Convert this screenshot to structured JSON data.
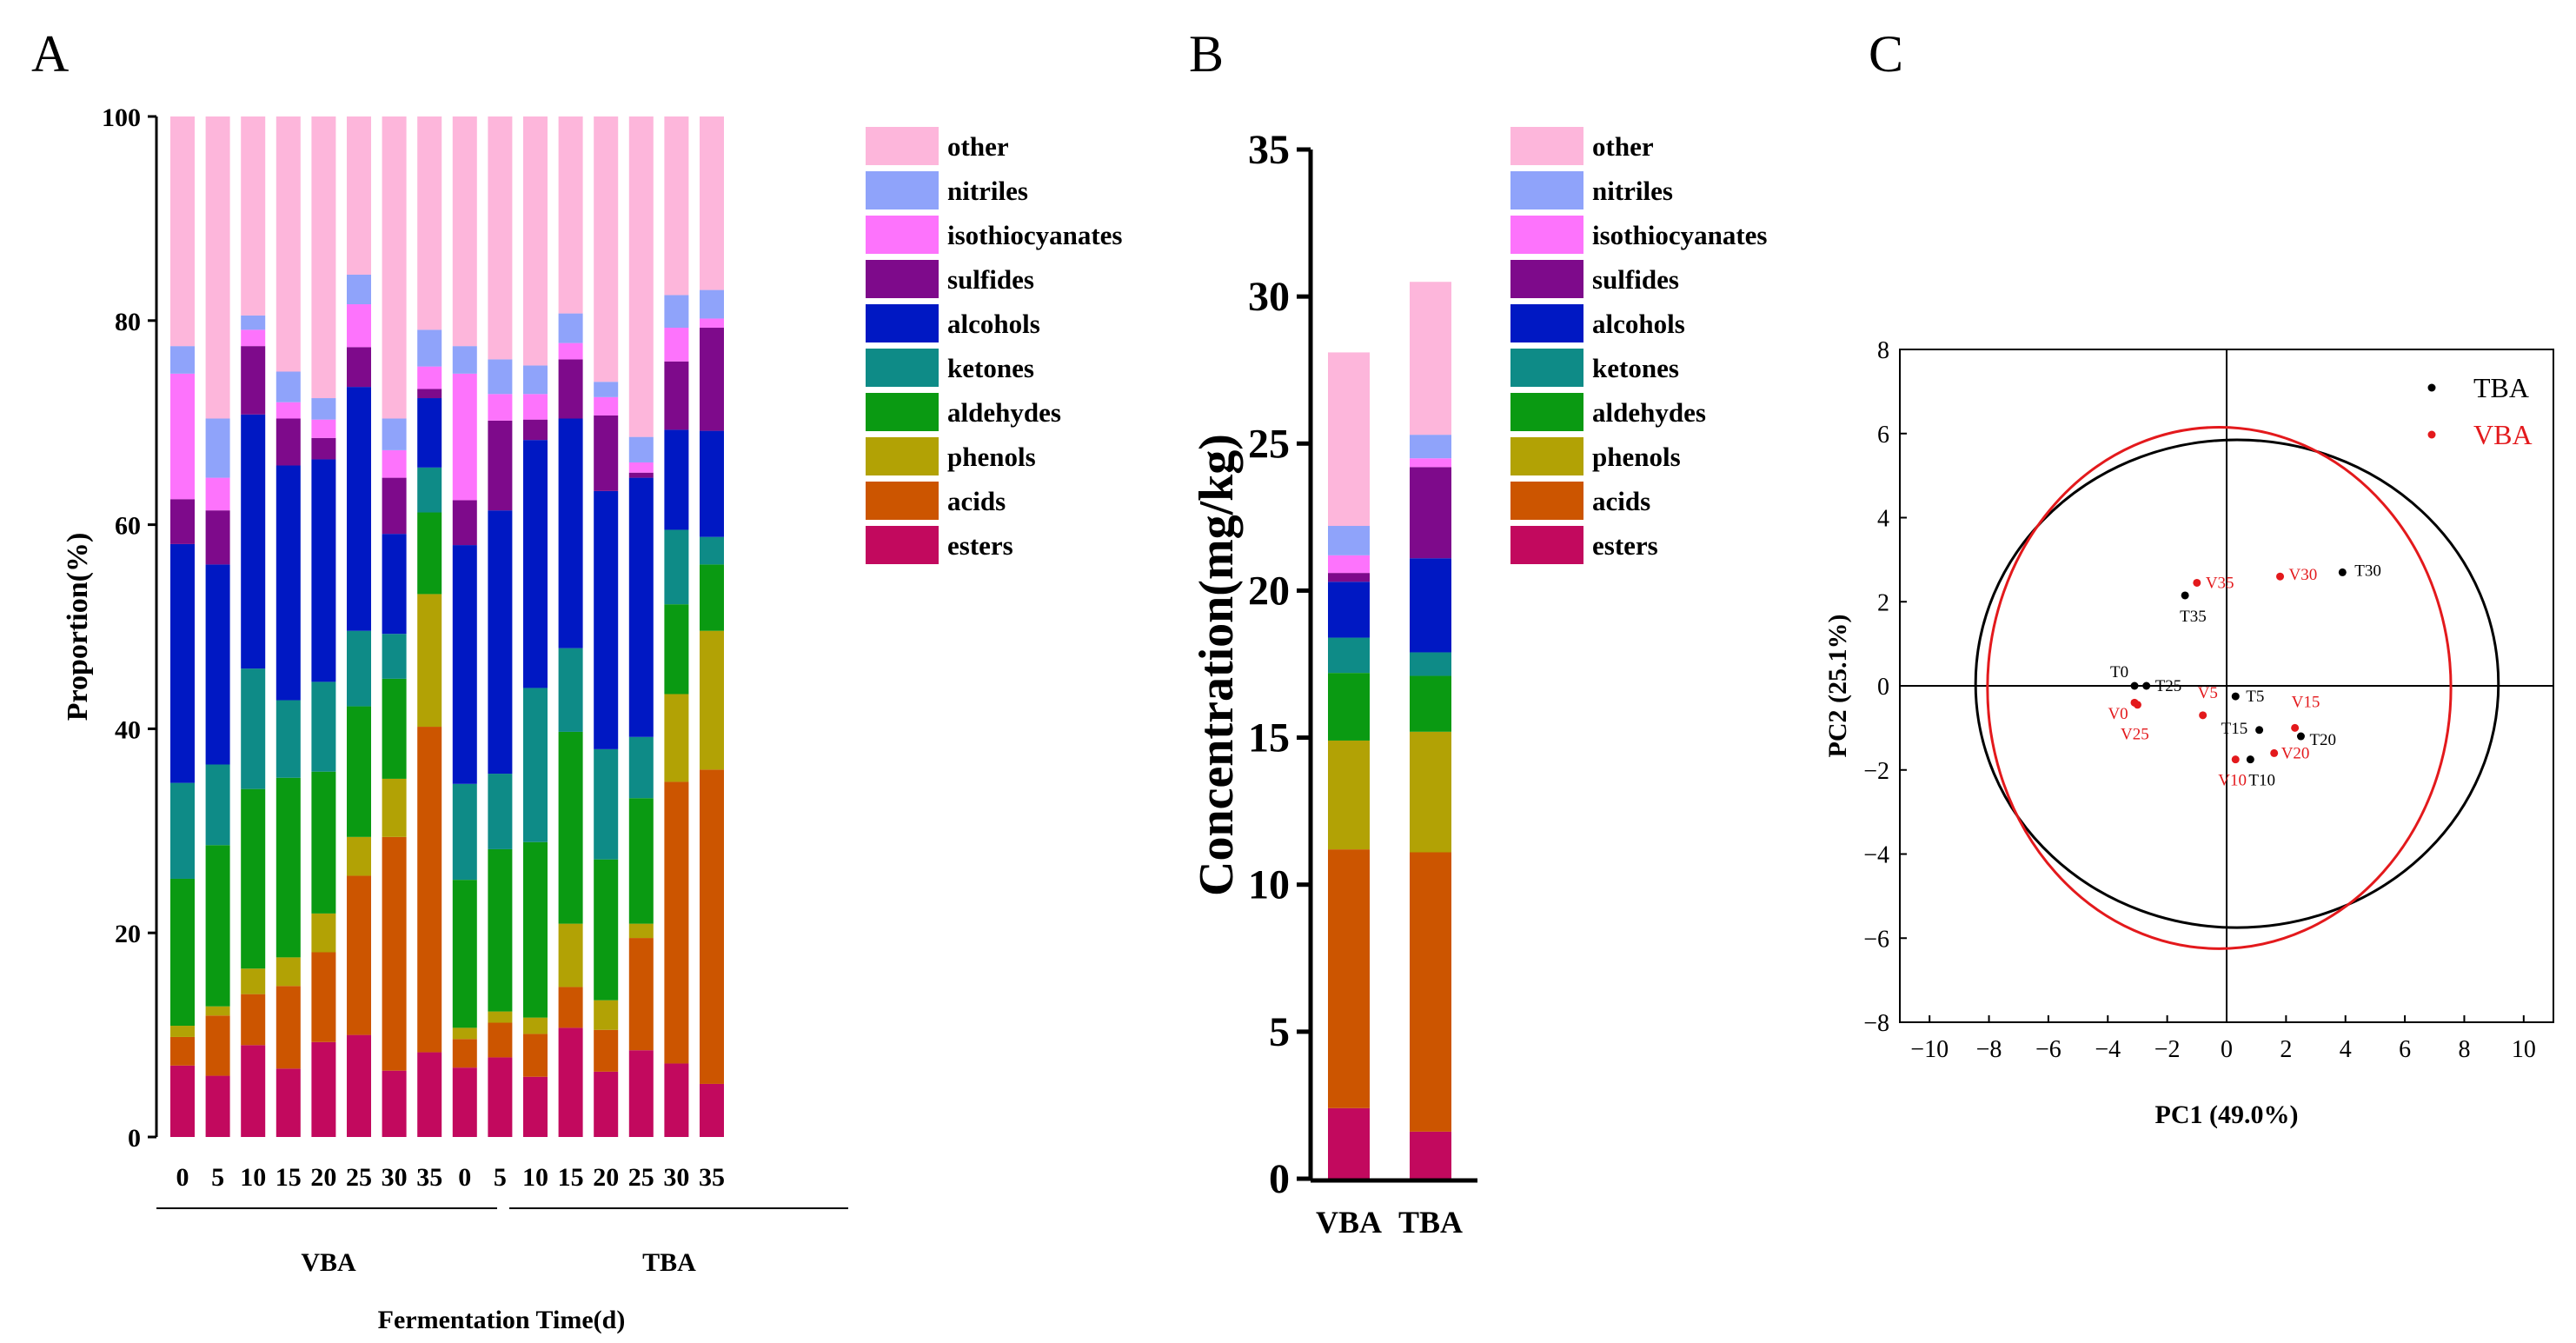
{
  "panels": {
    "a": "A",
    "b": "B",
    "c": "C"
  },
  "colors": {
    "other": "#FDB6DB",
    "nitriles": "#8FA3FA",
    "isothiocyanates": "#FD73FC",
    "sulfides": "#7E0A8B",
    "alcohols": "#0018C3",
    "ketones": "#0E8B87",
    "aldehydes": "#0A9A12",
    "phenols": "#B2A205",
    "acids": "#CC5500",
    "esters": "#C2095E"
  },
  "chart_data": [
    {
      "type": "bar",
      "stacked": true,
      "panel": "A",
      "ylabel": "Proportion(%)",
      "xlabel": "Fermentation Time(d)",
      "ylim": [
        0,
        100
      ],
      "yticks": [
        "0",
        "20",
        "40",
        "60",
        "80",
        "100"
      ],
      "groups": [
        {
          "label": "VBA"
        },
        {
          "label": "TBA"
        }
      ],
      "categories": [
        "0",
        "5",
        "10",
        "15",
        "20",
        "25",
        "30",
        "35",
        "0",
        "5",
        "10",
        "15",
        "20",
        "25",
        "30",
        "35"
      ],
      "legend": [
        "other",
        "nitriles",
        "isothiocyanates",
        "sulfides",
        "alcohols",
        "ketones",
        "aldehydes",
        "phenols",
        "acids",
        "esters"
      ],
      "series": [
        {
          "name": "esters",
          "values": [
            7,
            6,
            9,
            6.7,
            9.3,
            10,
            6.5,
            8.3,
            6.8,
            7.8,
            5.9,
            10.7,
            6.4,
            8.5,
            7.2,
            5.2
          ]
        },
        {
          "name": "acids",
          "values": [
            2.8,
            5.9,
            5,
            8.1,
            8.8,
            15.6,
            22.9,
            31.9,
            2.8,
            3.4,
            4.2,
            4,
            4.1,
            11,
            27.6,
            30.8
          ]
        },
        {
          "name": "phenols",
          "values": [
            1.1,
            0.9,
            2.5,
            2.8,
            3.8,
            3.8,
            5.7,
            13,
            1.1,
            1.1,
            1.6,
            6.2,
            2.9,
            1.4,
            8.6,
            13.6
          ]
        },
        {
          "name": "aldehydes",
          "values": [
            14.4,
            15.8,
            17.6,
            17.6,
            13.9,
            12.8,
            9.8,
            8,
            14.5,
            15.9,
            17.2,
            18.8,
            13.8,
            12.3,
            8.8,
            6.5
          ]
        },
        {
          "name": "ketones",
          "values": [
            9.4,
            7.9,
            11.8,
            7.6,
            8.8,
            7.4,
            4.4,
            4.4,
            9.4,
            7.4,
            15.1,
            8.2,
            10.8,
            6,
            7.3,
            2.7
          ]
        },
        {
          "name": "alcohols",
          "values": [
            23.4,
            19.6,
            24.9,
            23,
            21.8,
            23.9,
            9.8,
            6.8,
            23.4,
            25.8,
            24.3,
            22.5,
            25.3,
            25.4,
            9.8,
            10.4
          ]
        },
        {
          "name": "sulfides",
          "values": [
            4.4,
            5.3,
            6.7,
            4.6,
            2.1,
            3.9,
            5.5,
            0.9,
            4.4,
            8.8,
            2,
            5.8,
            7.4,
            0.5,
            6.7,
            10.1
          ]
        },
        {
          "name": "isothiocyanates",
          "values": [
            12.3,
            3.2,
            1.6,
            1.6,
            1.8,
            4.2,
            2.7,
            2.2,
            12.4,
            2.6,
            2.5,
            1.6,
            1.8,
            1,
            3.3,
            0.9
          ]
        },
        {
          "name": "nitriles",
          "values": [
            2.7,
            5.8,
            1.4,
            3,
            2.1,
            2.9,
            3.1,
            3.6,
            2.7,
            3.4,
            2.8,
            2.9,
            1.5,
            2.5,
            3.2,
            2.8
          ]
        },
        {
          "name": "other",
          "values": [
            22.5,
            29.6,
            19.5,
            25,
            27.6,
            15.5,
            29.6,
            20.9,
            22.5,
            23.8,
            24.4,
            19.3,
            26,
            31.4,
            17.5,
            17
          ]
        }
      ]
    },
    {
      "type": "bar",
      "stacked": true,
      "panel": "B",
      "ylabel": "Concentration(mg/kg)",
      "ylim": [
        0,
        35
      ],
      "yticks": [
        "0",
        "5",
        "10",
        "15",
        "20",
        "25",
        "30",
        "35"
      ],
      "categories": [
        "VBA",
        "TBA"
      ],
      "legend": [
        "other",
        "nitriles",
        "isothiocyanates",
        "sulfides",
        "alcohols",
        "ketones",
        "aldehydes",
        "phenols",
        "acids",
        "esters"
      ],
      "series": [
        {
          "name": "esters",
          "values": [
            2.4,
            1.6
          ]
        },
        {
          "name": "acids",
          "values": [
            8.8,
            9.5
          ]
        },
        {
          "name": "phenols",
          "values": [
            3.7,
            4.1
          ]
        },
        {
          "name": "aldehydes",
          "values": [
            2.3,
            1.9
          ]
        },
        {
          "name": "ketones",
          "values": [
            1.2,
            0.8
          ]
        },
        {
          "name": "alcohols",
          "values": [
            1.9,
            3.2
          ]
        },
        {
          "name": "sulfides",
          "values": [
            0.3,
            3.1
          ]
        },
        {
          "name": "isothiocyanates",
          "values": [
            0.6,
            0.3
          ]
        },
        {
          "name": "nitriles",
          "values": [
            1,
            0.8
          ]
        },
        {
          "name": "other",
          "values": [
            5.9,
            5.2
          ]
        }
      ]
    },
    {
      "type": "scatter",
      "panel": "C",
      "xlabel": "PC1 (49.0%)",
      "ylabel": "PC2 (25.1%)",
      "xlim": [
        -11,
        11
      ],
      "ylim": [
        -8,
        8
      ],
      "xticks": [
        "−10",
        "−8",
        "−6",
        "−4",
        "−2",
        "0",
        "2",
        "4",
        "6",
        "8",
        "10"
      ],
      "yticks": [
        "−8",
        "−6",
        "−4",
        "−2",
        "0",
        "2",
        "4",
        "6",
        "8"
      ],
      "legend": [
        {
          "name": "TBA",
          "color": "#000000"
        },
        {
          "name": "VBA",
          "color": "#E3191C"
        }
      ],
      "series": [
        {
          "name": "TBA",
          "color": "#000000",
          "points": [
            {
              "label": "T0",
              "x": -3.1,
              "y": 0.0
            },
            {
              "label": "T5",
              "x": 0.3,
              "y": -0.25
            },
            {
              "label": "T10",
              "x": 0.8,
              "y": -1.75
            },
            {
              "label": "T15",
              "x": 1.1,
              "y": -1.05
            },
            {
              "label": "T20",
              "x": 2.5,
              "y": -1.2
            },
            {
              "label": "T25",
              "x": -2.7,
              "y": 0.0
            },
            {
              "label": "T30",
              "x": 3.9,
              "y": 2.7
            },
            {
              "label": "T35",
              "x": -1.4,
              "y": 2.15
            }
          ]
        },
        {
          "name": "VBA",
          "color": "#E3191C",
          "points": [
            {
              "label": "V0",
              "x": -3.0,
              "y": -0.45
            },
            {
              "label": "V5",
              "x": -0.8,
              "y": -0.7
            },
            {
              "label": "V10",
              "x": 0.3,
              "y": -1.75
            },
            {
              "label": "V15",
              "x": 2.3,
              "y": -1.0
            },
            {
              "label": "V20",
              "x": 1.6,
              "y": -1.6
            },
            {
              "label": "V25",
              "x": -3.1,
              "y": -0.4
            },
            {
              "label": "V30",
              "x": 1.8,
              "y": 2.6
            },
            {
              "label": "V35",
              "x": -1.0,
              "y": 2.45
            }
          ]
        }
      ],
      "ellipses": [
        {
          "name": "TBA",
          "color": "#000000",
          "cx": 0.35,
          "cy": 0.05,
          "rx": 8.8,
          "ry": 5.8
        },
        {
          "name": "VBA",
          "color": "#E3191C",
          "cx": -0.25,
          "cy": -0.05,
          "rx": 7.8,
          "ry": 6.2
        }
      ]
    }
  ]
}
